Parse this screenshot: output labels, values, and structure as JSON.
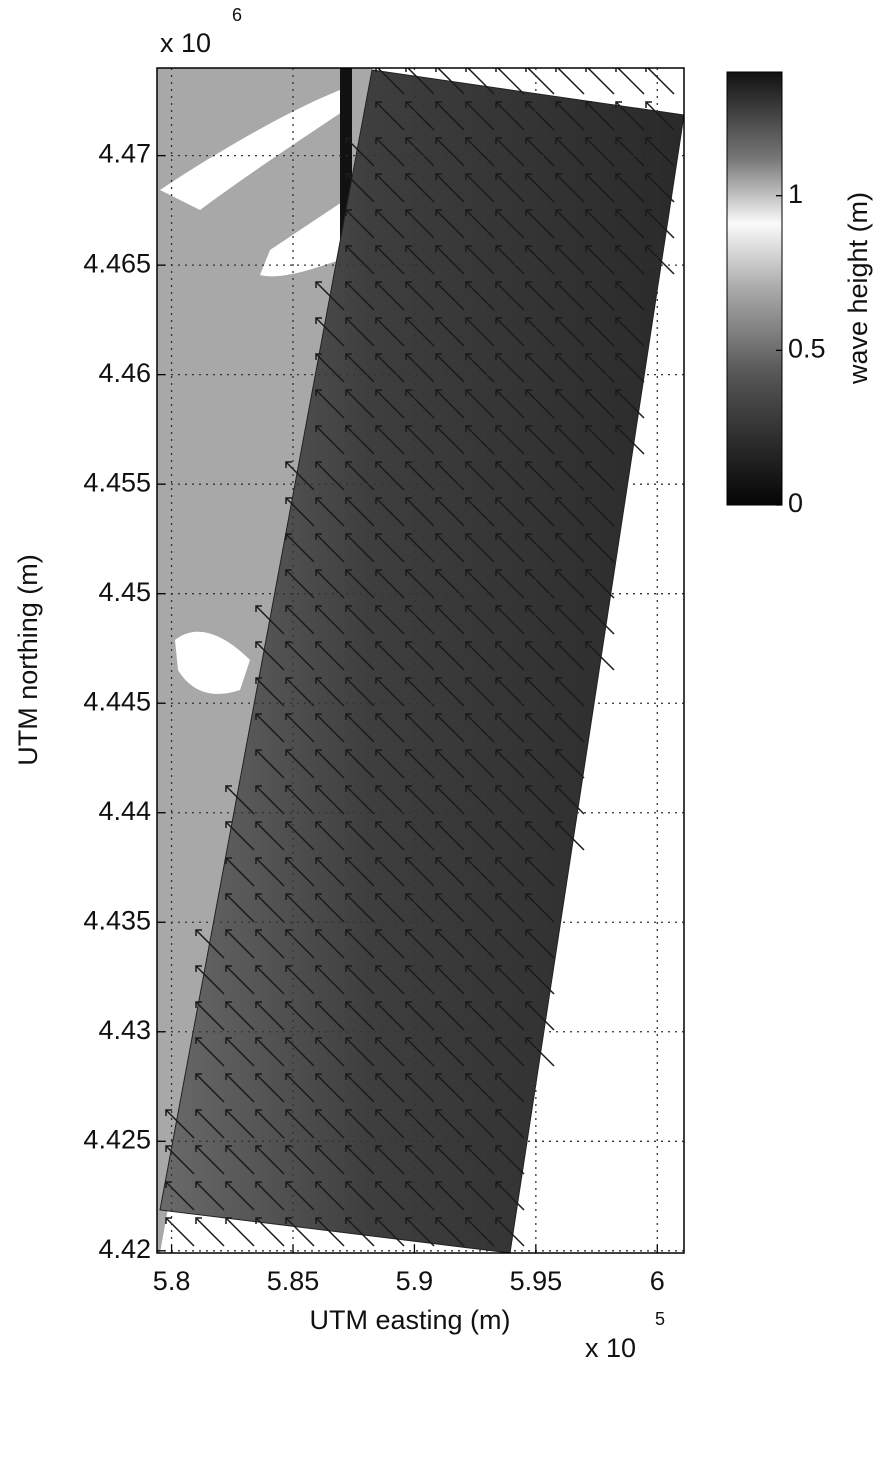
{
  "chart_data": {
    "type": "field-map",
    "x_label": "UTM easting (m)",
    "y_label": "UTM northing (m)",
    "x_exponent": {
      "base": "x 10",
      "power": "5"
    },
    "y_exponent": {
      "base": "x 10",
      "power": "6"
    },
    "xlim": [
      5.794,
      6.011
    ],
    "xticks": [
      5.8,
      5.85,
      5.9,
      5.95,
      6
    ],
    "ylim": [
      4.4199,
      4.474
    ],
    "yticks": [
      4.42,
      4.425,
      4.43,
      4.435,
      4.44,
      4.445,
      4.45,
      4.455,
      4.46,
      4.465,
      4.47
    ],
    "grid": true,
    "colorbar": {
      "label": "wave height (m)",
      "clim": [
        0,
        1.4
      ],
      "ticks": [
        0,
        0.5,
        1
      ]
    }
  }
}
